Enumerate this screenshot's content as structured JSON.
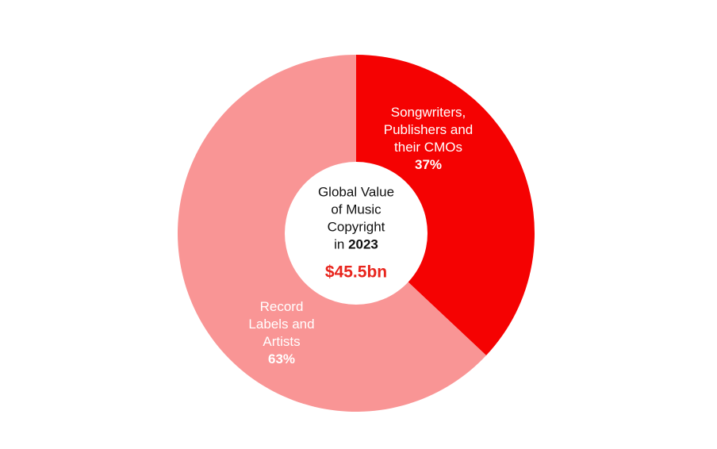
{
  "chart_data": {
    "type": "donut",
    "categories": [
      "Songwriters, Publishers and their CMOs",
      "Record Labels and Artists"
    ],
    "values": [
      37,
      63
    ],
    "value_labels": [
      "37%",
      "63%"
    ],
    "colors": [
      "#f50202",
      "#f99595"
    ],
    "center": {
      "lines": [
        "Global Value",
        "of Music",
        "Copyright"
      ],
      "prefix": "in",
      "year": "2023",
      "total": "$45.5bn"
    }
  }
}
